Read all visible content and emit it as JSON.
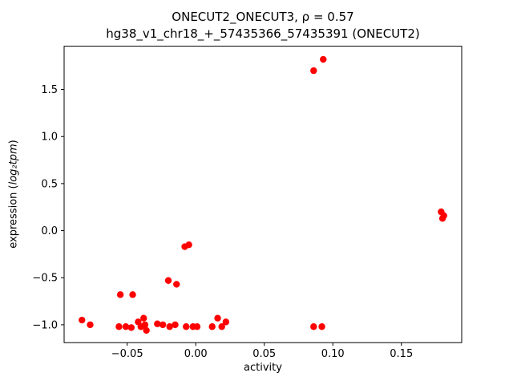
{
  "chart_data": {
    "type": "scatter",
    "title_line1": "ONECUT2_ONECUT3, ρ = 0.57",
    "title_line2": "hg38_v1_chr18_+_57435366_57435391 (ONECUT2)",
    "xlabel": "activity",
    "ylabel_prefix": "expression (",
    "ylabel_math": "log₂tpm",
    "ylabel_suffix": ")",
    "marker_color": "#ff0000",
    "axes_edge_color": "#000000",
    "background_color": "#ffffff",
    "grid": false,
    "legend": null,
    "xlim": [
      -0.096,
      0.194
    ],
    "ylim": [
      -1.19,
      1.96
    ],
    "xticks": {
      "values": [
        -0.05,
        0.0,
        0.05,
        0.1,
        0.15
      ],
      "labels": [
        "−0.05",
        "0.00",
        "0.05",
        "0.10",
        "0.15"
      ]
    },
    "yticks": {
      "values": [
        -1.0,
        -0.5,
        0.0,
        0.5,
        1.0,
        1.5
      ],
      "labels": [
        "−1.0",
        "−0.5",
        "0.0",
        "0.5",
        "1.0",
        "1.5"
      ]
    },
    "points": [
      [
        -0.083,
        -0.95
      ],
      [
        -0.077,
        -1.0
      ],
      [
        -0.055,
        -0.68
      ],
      [
        -0.046,
        -0.68
      ],
      [
        -0.056,
        -1.02
      ],
      [
        -0.051,
        -1.02
      ],
      [
        -0.047,
        -1.03
      ],
      [
        -0.042,
        -0.97
      ],
      [
        -0.04,
        -1.02
      ],
      [
        -0.038,
        -0.93
      ],
      [
        -0.037,
        -1.0
      ],
      [
        -0.036,
        -1.06
      ],
      [
        -0.028,
        -0.99
      ],
      [
        -0.024,
        -1.0
      ],
      [
        -0.02,
        -0.53
      ],
      [
        -0.014,
        -0.57
      ],
      [
        -0.019,
        -1.02
      ],
      [
        -0.015,
        -1.0
      ],
      [
        -0.008,
        -0.17
      ],
      [
        -0.005,
        -0.15
      ],
      [
        -0.007,
        -1.02
      ],
      [
        -0.002,
        -1.02
      ],
      [
        0.001,
        -1.02
      ],
      [
        0.012,
        -1.02
      ],
      [
        0.016,
        -0.93
      ],
      [
        0.019,
        -1.02
      ],
      [
        0.022,
        -0.97
      ],
      [
        0.086,
        1.7
      ],
      [
        0.093,
        1.82
      ],
      [
        0.086,
        -1.02
      ],
      [
        0.092,
        -1.02
      ],
      [
        0.179,
        0.2
      ],
      [
        0.18,
        0.13
      ],
      [
        0.181,
        0.16
      ]
    ]
  }
}
